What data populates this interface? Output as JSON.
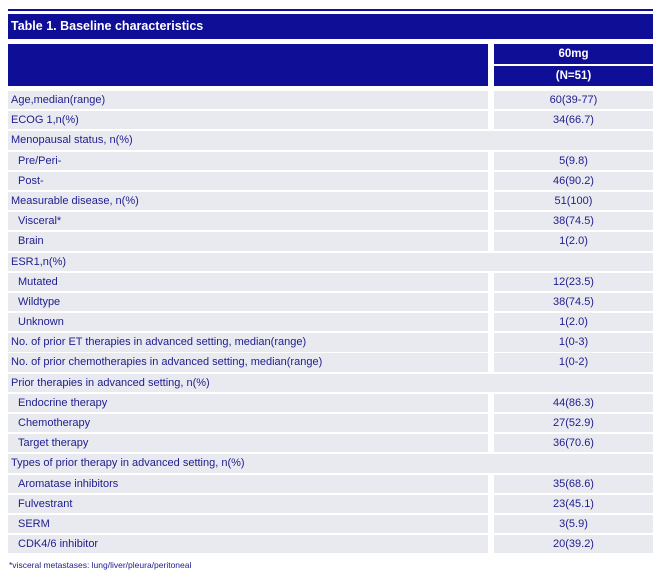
{
  "title": "Table 1. Baseline characteristics",
  "header": {
    "dose": "60mg",
    "n": "(N=51)"
  },
  "colors": {
    "navy": "#0E0E96",
    "row_bg": "#E9E9F0",
    "header_text": "#FFFFFF",
    "body_text": "#20208F"
  },
  "table": {
    "rows": [
      {
        "label": "Age,median(range)",
        "value": "60(39-77)",
        "indent": false,
        "group": false
      },
      {
        "label": "ECOG 1,n(%)",
        "value": "34(66.7)",
        "indent": false,
        "group": false
      },
      {
        "label": "Menopausal status, n(%)",
        "value": "",
        "indent": false,
        "group": true
      },
      {
        "label": "Pre/Peri-",
        "value": "5(9.8)",
        "indent": true,
        "group": false
      },
      {
        "label": "Post-",
        "value": "46(90.2)",
        "indent": true,
        "group": false
      },
      {
        "label": "Measurable disease, n(%)",
        "value": "51(100)",
        "indent": false,
        "group": false
      },
      {
        "label": "Visceral*",
        "value": "38(74.5)",
        "indent": true,
        "group": false
      },
      {
        "label": "Brain",
        "value": "1(2.0)",
        "indent": true,
        "group": false
      },
      {
        "label": "ESR1,n(%)",
        "value": "",
        "indent": false,
        "group": true
      },
      {
        "label": "Mutated",
        "value": "12(23.5)",
        "indent": true,
        "group": false
      },
      {
        "label": "Wildtype",
        "value": "38(74.5)",
        "indent": true,
        "group": false
      },
      {
        "label": "Unknown",
        "value": "1(2.0)",
        "indent": true,
        "group": false
      },
      {
        "label": "No. of prior ET therapies in advanced setting, median(range)",
        "value": "1(0-3)",
        "indent": false,
        "group": false
      },
      {
        "label": "No. of prior chemotherapies in advanced setting, median(range)",
        "value": "1(0-2)",
        "indent": false,
        "group": false
      },
      {
        "label": "Prior therapies in advanced setting, n(%)",
        "value": "",
        "indent": false,
        "group": true
      },
      {
        "label": "Endocrine therapy",
        "value": "44(86.3)",
        "indent": true,
        "group": false
      },
      {
        "label": "Chemotherapy",
        "value": "27(52.9)",
        "indent": true,
        "group": false
      },
      {
        "label": "Target therapy",
        "value": "36(70.6)",
        "indent": true,
        "group": false
      },
      {
        "label": "Types of prior therapy in advanced setting, n(%)",
        "value": "",
        "indent": false,
        "group": true
      },
      {
        "label": "Aromatase inhibitors",
        "value": "35(68.6)",
        "indent": true,
        "group": false
      },
      {
        "label": "Fulvestrant",
        "value": "23(45.1)",
        "indent": true,
        "group": false
      },
      {
        "label": "SERM",
        "value": "3(5.9)",
        "indent": true,
        "group": false
      },
      {
        "label": "CDK4/6 inhibitor",
        "value": "20(39.2)",
        "indent": true,
        "group": false
      }
    ]
  },
  "footnote": "*visceral metastases: lung/liver/pleura/peritoneal"
}
